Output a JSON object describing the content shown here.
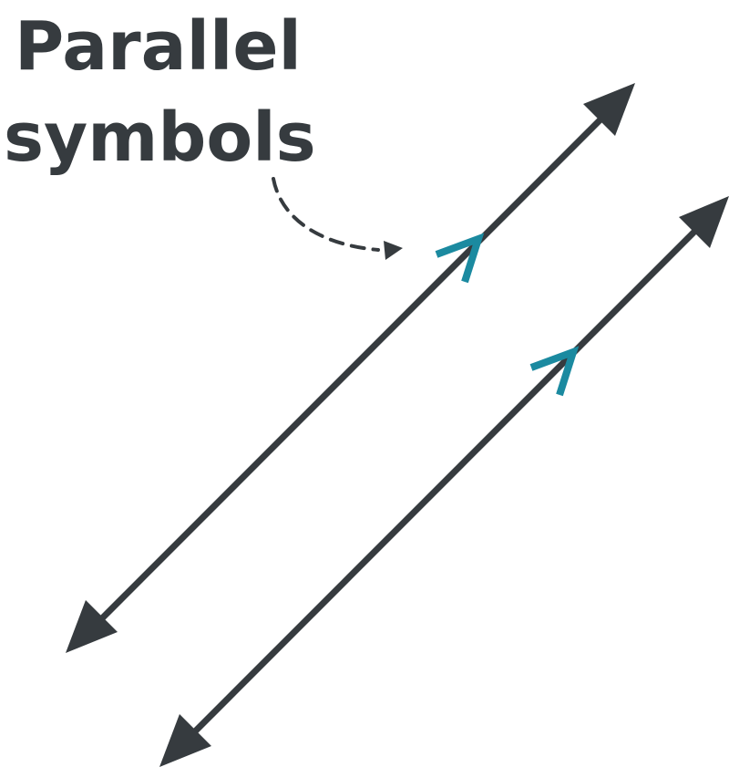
{
  "label": {
    "line1": "Parallel",
    "line2": "symbols"
  },
  "colors": {
    "line": "#363b3f",
    "mark": "#1b8aa0",
    "text": "#363b3f",
    "background": "#ffffff"
  },
  "icons": {
    "line_end": "arrowhead-icon",
    "parallel_mark": "chevron-icon",
    "pointer": "dashed-curved-arrow-icon"
  }
}
